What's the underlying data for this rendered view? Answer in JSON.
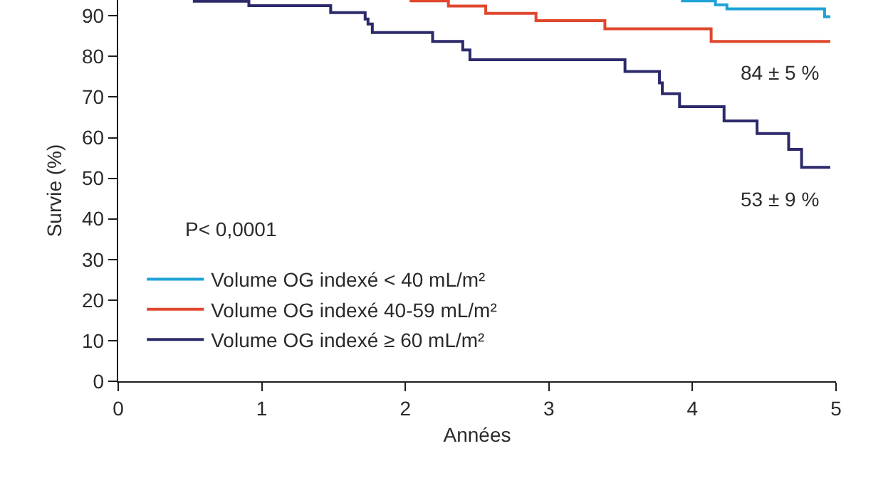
{
  "chart_data": {
    "type": "step",
    "xlabel": "Années",
    "ylabel": "Survie (%)",
    "xlim": [
      0,
      5
    ],
    "xticks": [
      0,
      1,
      2,
      3,
      4,
      5
    ],
    "ylim": [
      0,
      93.9
    ],
    "yticks": [
      0,
      10,
      20,
      30,
      40,
      50,
      60,
      70,
      80,
      90
    ],
    "legend": "bottom left",
    "series": [
      {
        "name": "Volume OG indexé < 40 mL/m²",
        "color": "#1fa2d6",
        "x": [
          3.92,
          4.16,
          4.24,
          4.92,
          4.96
        ],
        "values": [
          93.7,
          92.7,
          91.7,
          89.8,
          89.8
        ]
      },
      {
        "name": "Volume OG indexé 40-59 mL/m²",
        "color": "#e0472d",
        "x": [
          2.03,
          2.3,
          2.56,
          2.91,
          3.39,
          4.13,
          4.96
        ],
        "values": [
          93.7,
          92.4,
          90.6,
          88.8,
          86.8,
          83.7,
          83.7
        ]
      },
      {
        "name": "Volume OG indexé ≥ 60 mL/m²",
        "color": "#2c2a6a",
        "x": [
          0.52,
          0.91,
          1.48,
          1.72,
          1.74,
          1.77,
          2.19,
          2.4,
          2.45,
          3.53,
          3.77,
          3.79,
          3.91,
          4.22,
          4.45,
          4.67,
          4.76,
          4.96
        ],
        "values": [
          93.6,
          92.5,
          90.8,
          89.2,
          88.0,
          85.9,
          83.7,
          81.6,
          79.2,
          76.3,
          73.5,
          70.8,
          67.6,
          64.1,
          61.0,
          57.1,
          52.7,
          52.7
        ]
      }
    ],
    "annotations": [
      "P< 0,0001",
      {
        "text": "84 ± 5 %",
        "x": 4.96,
        "y": 83.7
      },
      {
        "text": "53 ± 9 %",
        "x": 4.96,
        "y": 52.7
      }
    ]
  }
}
